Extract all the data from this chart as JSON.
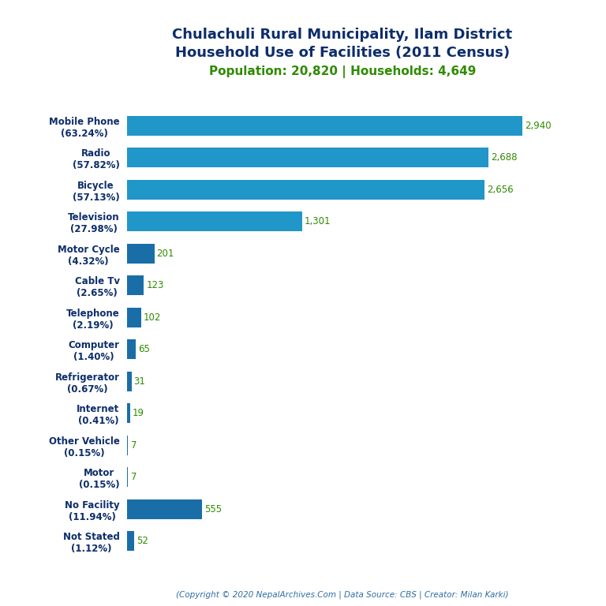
{
  "title_line1": "Chulachuli Rural Municipality, Ilam District",
  "title_line2": "Household Use of Facilities (2011 Census)",
  "subtitle": "Population: 20,820 | Households: 4,649",
  "footer": "(Copyright © 2020 NepalArchives.Com | Data Source: CBS | Creator: Milan Karki)",
  "categories": [
    "Mobile Phone\n(63.24%)",
    "Radio\n(57.82%)",
    "Bicycle\n(57.13%)",
    "Television\n(27.98%)",
    "Motor Cycle\n(4.32%)",
    "Cable Tv\n(2.65%)",
    "Telephone\n(2.19%)",
    "Computer\n(1.40%)",
    "Refrigerator\n(0.67%)",
    "Internet\n(0.41%)",
    "Other Vehicle\n(0.15%)",
    "Motor\n(0.15%)",
    "No Facility\n(11.94%)",
    "Not Stated\n(1.12%)"
  ],
  "values": [
    2940,
    2688,
    2656,
    1301,
    201,
    123,
    102,
    65,
    31,
    19,
    7,
    7,
    555,
    52
  ],
  "bar_color_dark": "#1a6ea8",
  "bar_color_light": "#2196c8",
  "title_color": "#0d2d6b",
  "subtitle_color": "#2e8b00",
  "value_color": "#2e8b00",
  "footer_color": "#2e6da4",
  "background_color": "#ffffff",
  "xlim": [
    0,
    3200
  ]
}
